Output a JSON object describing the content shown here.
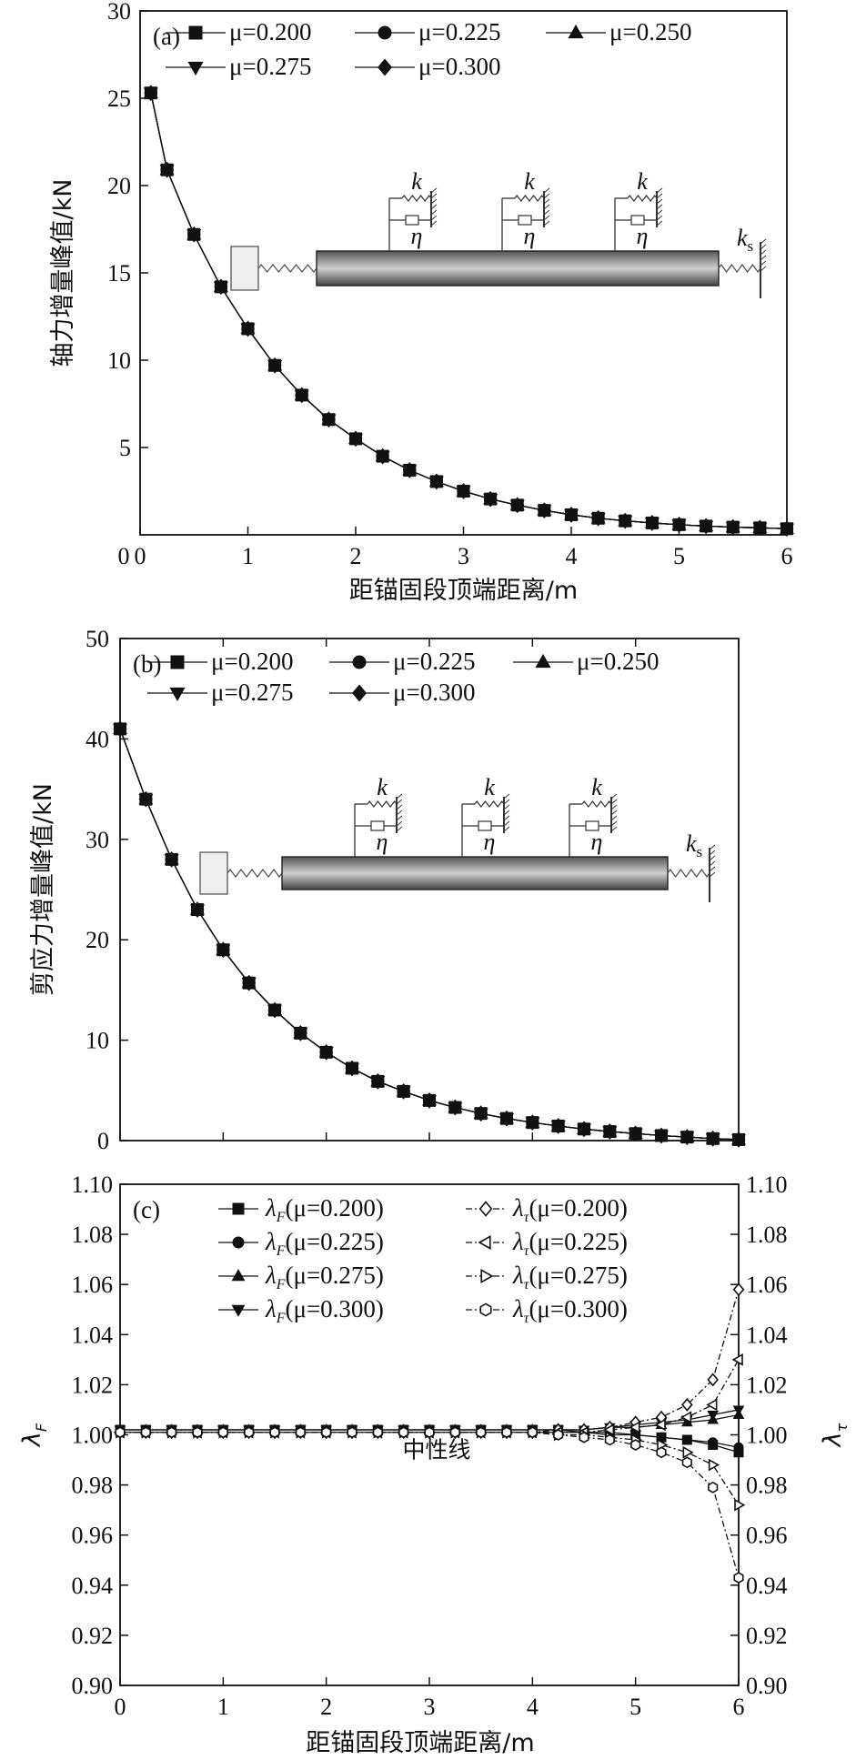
{
  "chart_data": [
    {
      "panel": "(a)",
      "type": "line",
      "xlabel": "距锚固段顶端距离/m",
      "ylabel": "轴力增量峰值/kN",
      "xlim": [
        0,
        6
      ],
      "ylim": [
        0,
        30
      ],
      "xticks": [
        "0",
        "1",
        "2",
        "3",
        "4",
        "5",
        "6"
      ],
      "yticks": [
        "5",
        "10",
        "15",
        "20",
        "25",
        "30"
      ],
      "y_zero_label": "0",
      "legend_placement": "top",
      "x": [
        0.1,
        0.25,
        0.5,
        0.75,
        1.0,
        1.25,
        1.5,
        1.75,
        2.0,
        2.25,
        2.5,
        2.75,
        3.0,
        3.25,
        3.5,
        3.75,
        4.0,
        4.25,
        4.5,
        4.75,
        5.0,
        5.25,
        5.5,
        5.75,
        6.0
      ],
      "series": [
        {
          "name": "μ=0.200",
          "marker": "square",
          "values": [
            25.3,
            20.9,
            17.2,
            14.2,
            11.8,
            9.7,
            8.0,
            6.6,
            5.5,
            4.5,
            3.7,
            3.05,
            2.5,
            2.05,
            1.7,
            1.4,
            1.15,
            0.95,
            0.8,
            0.68,
            0.58,
            0.5,
            0.44,
            0.4,
            0.35
          ]
        },
        {
          "name": "μ=0.225",
          "marker": "circle",
          "values": [
            25.3,
            20.9,
            17.2,
            14.2,
            11.8,
            9.7,
            8.0,
            6.6,
            5.5,
            4.5,
            3.7,
            3.05,
            2.5,
            2.05,
            1.7,
            1.4,
            1.15,
            0.95,
            0.8,
            0.68,
            0.58,
            0.5,
            0.44,
            0.4,
            0.35
          ]
        },
        {
          "name": "μ=0.250",
          "marker": "triangle-up",
          "values": [
            25.3,
            20.9,
            17.2,
            14.2,
            11.8,
            9.7,
            8.0,
            6.6,
            5.5,
            4.5,
            3.7,
            3.05,
            2.5,
            2.05,
            1.7,
            1.4,
            1.15,
            0.95,
            0.8,
            0.68,
            0.58,
            0.5,
            0.44,
            0.4,
            0.35
          ]
        },
        {
          "name": "μ=0.275",
          "marker": "triangle-down",
          "values": [
            25.3,
            20.9,
            17.2,
            14.2,
            11.8,
            9.7,
            8.0,
            6.6,
            5.5,
            4.5,
            3.7,
            3.05,
            2.5,
            2.05,
            1.7,
            1.4,
            1.15,
            0.95,
            0.8,
            0.68,
            0.58,
            0.5,
            0.44,
            0.4,
            0.35
          ]
        },
        {
          "name": "μ=0.300",
          "marker": "diamond",
          "values": [
            25.3,
            20.9,
            17.2,
            14.2,
            11.8,
            9.7,
            8.0,
            6.6,
            5.5,
            4.5,
            3.7,
            3.05,
            2.5,
            2.05,
            1.7,
            1.4,
            1.15,
            0.95,
            0.8,
            0.68,
            0.58,
            0.5,
            0.44,
            0.4,
            0.35
          ]
        }
      ],
      "inset_labels": {
        "k": "k",
        "eta": "η",
        "ks": "k",
        "ks_sub": "s"
      }
    },
    {
      "panel": "(b)",
      "type": "line",
      "xlabel": "",
      "ylabel": "剪应力增量峰值/kN",
      "xlim": [
        0,
        6
      ],
      "ylim": [
        0,
        50
      ],
      "xticks": [],
      "yticks": [
        "0",
        "10",
        "20",
        "30",
        "40",
        "50"
      ],
      "legend_placement": "top",
      "x": [
        0.0,
        0.25,
        0.5,
        0.75,
        1.0,
        1.25,
        1.5,
        1.75,
        2.0,
        2.25,
        2.5,
        2.75,
        3.0,
        3.25,
        3.5,
        3.75,
        4.0,
        4.25,
        4.5,
        4.75,
        5.0,
        5.25,
        5.5,
        5.75,
        6.0
      ],
      "series": [
        {
          "name": "μ=0.200",
          "marker": "square",
          "values": [
            41.0,
            34.0,
            28.0,
            23.0,
            19.0,
            15.7,
            13.0,
            10.7,
            8.8,
            7.2,
            5.9,
            4.9,
            4.0,
            3.3,
            2.7,
            2.2,
            1.8,
            1.45,
            1.15,
            0.9,
            0.7,
            0.5,
            0.35,
            0.2,
            0.1
          ]
        },
        {
          "name": "μ=0.225",
          "marker": "circle",
          "values": [
            41.0,
            34.0,
            28.0,
            23.0,
            19.0,
            15.7,
            13.0,
            10.7,
            8.8,
            7.2,
            5.9,
            4.9,
            4.0,
            3.3,
            2.7,
            2.2,
            1.8,
            1.45,
            1.15,
            0.9,
            0.7,
            0.5,
            0.35,
            0.2,
            0.1
          ]
        },
        {
          "name": "μ=0.250",
          "marker": "triangle-up",
          "values": [
            41.0,
            34.0,
            28.0,
            23.0,
            19.0,
            15.7,
            13.0,
            10.7,
            8.8,
            7.2,
            5.9,
            4.9,
            4.0,
            3.3,
            2.7,
            2.2,
            1.8,
            1.45,
            1.15,
            0.9,
            0.7,
            0.5,
            0.35,
            0.2,
            0.1
          ]
        },
        {
          "name": "μ=0.275",
          "marker": "triangle-down",
          "values": [
            41.0,
            34.0,
            28.0,
            23.0,
            19.0,
            15.7,
            13.0,
            10.7,
            8.8,
            7.2,
            5.9,
            4.9,
            4.0,
            3.3,
            2.7,
            2.2,
            1.8,
            1.45,
            1.15,
            0.9,
            0.7,
            0.5,
            0.35,
            0.2,
            0.1
          ]
        },
        {
          "name": "μ=0.300",
          "marker": "diamond",
          "values": [
            41.0,
            34.0,
            28.0,
            23.0,
            19.0,
            15.7,
            13.0,
            10.7,
            8.8,
            7.2,
            5.9,
            4.9,
            4.0,
            3.3,
            2.7,
            2.2,
            1.8,
            1.45,
            1.15,
            0.9,
            0.7,
            0.5,
            0.35,
            0.2,
            0.1
          ]
        }
      ],
      "inset_labels": {
        "k": "k",
        "eta": "η",
        "ks": "k",
        "ks_sub": "s"
      }
    },
    {
      "panel": "(c)",
      "type": "line",
      "xlabel": "距锚固段顶端距离/m",
      "ylabel_left": "λ",
      "ylabel_left_sub": "F",
      "ylabel_right": "λ",
      "ylabel_right_sub": "τ",
      "xlim": [
        0,
        6
      ],
      "ylim": [
        0.9,
        1.1
      ],
      "xticks": [
        "0",
        "1",
        "2",
        "3",
        "4",
        "5",
        "6"
      ],
      "yticks": [
        "0.90",
        "0.92",
        "0.94",
        "0.96",
        "0.98",
        "1.00",
        "1.02",
        "1.04",
        "1.06",
        "1.08",
        "1.10"
      ],
      "legend_placement": "top",
      "annotation": "中性线",
      "x": [
        0.0,
        0.25,
        0.5,
        0.75,
        1.0,
        1.25,
        1.5,
        1.75,
        2.0,
        2.25,
        2.5,
        2.75,
        3.0,
        3.25,
        3.5,
        3.75,
        4.0,
        4.25,
        4.5,
        4.75,
        5.0,
        5.25,
        5.5,
        5.75,
        6.0
      ],
      "series": [
        {
          "symbol": "λ",
          "sub": "F",
          "mu": "(μ=0.200)",
          "marker": "square",
          "fill": "solid",
          "dash": "solid",
          "values": [
            1.002,
            1.002,
            1.002,
            1.002,
            1.002,
            1.002,
            1.002,
            1.002,
            1.002,
            1.002,
            1.002,
            1.002,
            1.002,
            1.002,
            1.002,
            1.002,
            1.002,
            1.002,
            1.001,
            1.001,
            1.0,
            0.999,
            0.998,
            0.996,
            0.993
          ]
        },
        {
          "symbol": "λ",
          "sub": "F",
          "mu": "(μ=0.225)",
          "marker": "circle",
          "fill": "solid",
          "dash": "solid",
          "values": [
            1.001,
            1.001,
            1.001,
            1.001,
            1.001,
            1.001,
            1.001,
            1.001,
            1.001,
            1.001,
            1.001,
            1.001,
            1.001,
            1.001,
            1.001,
            1.001,
            1.001,
            1.001,
            1.001,
            1.0,
            1.0,
            0.999,
            0.998,
            0.997,
            0.995
          ]
        },
        {
          "symbol": "λ",
          "sub": "F",
          "mu": "(μ=0.275)",
          "marker": "triangle-up",
          "fill": "solid",
          "dash": "solid",
          "values": [
            1.002,
            1.002,
            1.002,
            1.002,
            1.002,
            1.002,
            1.002,
            1.002,
            1.002,
            1.002,
            1.002,
            1.002,
            1.002,
            1.002,
            1.002,
            1.002,
            1.002,
            1.002,
            1.002,
            1.003,
            1.003,
            1.004,
            1.005,
            1.006,
            1.008
          ]
        },
        {
          "symbol": "λ",
          "sub": "F",
          "mu": "(μ=0.300)",
          "marker": "triangle-down",
          "fill": "solid",
          "dash": "solid",
          "values": [
            1.002,
            1.002,
            1.002,
            1.002,
            1.002,
            1.002,
            1.002,
            1.002,
            1.002,
            1.002,
            1.002,
            1.002,
            1.002,
            1.002,
            1.002,
            1.002,
            1.002,
            1.002,
            1.002,
            1.003,
            1.004,
            1.005,
            1.006,
            1.008,
            1.01
          ]
        },
        {
          "symbol": "λ",
          "sub": "τ",
          "mu": "(μ=0.200)",
          "marker": "diamond",
          "fill": "hollow",
          "dash": "dashdot",
          "values": [
            1.001,
            1.001,
            1.001,
            1.001,
            1.001,
            1.001,
            1.001,
            1.001,
            1.001,
            1.001,
            1.001,
            1.001,
            1.001,
            1.001,
            1.001,
            1.001,
            1.001,
            1.002,
            1.002,
            1.003,
            1.005,
            1.007,
            1.012,
            1.022,
            1.058
          ]
        },
        {
          "symbol": "λ",
          "sub": "τ",
          "mu": "(μ=0.225)",
          "marker": "triangle-left",
          "fill": "hollow",
          "dash": "dashdot",
          "values": [
            1.001,
            1.001,
            1.001,
            1.001,
            1.001,
            1.001,
            1.001,
            1.001,
            1.001,
            1.001,
            1.001,
            1.001,
            1.001,
            1.001,
            1.001,
            1.001,
            1.001,
            1.001,
            1.001,
            1.002,
            1.003,
            1.004,
            1.007,
            1.012,
            1.03
          ]
        },
        {
          "symbol": "λ",
          "sub": "τ",
          "mu": "(μ=0.275)",
          "marker": "triangle-right",
          "fill": "hollow",
          "dash": "dashdot",
          "values": [
            1.001,
            1.001,
            1.001,
            1.001,
            1.001,
            1.001,
            1.001,
            1.001,
            1.001,
            1.001,
            1.001,
            1.001,
            1.001,
            1.001,
            1.001,
            1.001,
            1.001,
            1.0,
            1.0,
            0.999,
            0.998,
            0.996,
            0.993,
            0.988,
            0.972
          ]
        },
        {
          "symbol": "λ",
          "sub": "τ",
          "mu": "(μ=0.300)",
          "marker": "hexagon",
          "fill": "hollow",
          "dash": "dashdot",
          "values": [
            1.001,
            1.001,
            1.001,
            1.001,
            1.001,
            1.001,
            1.001,
            1.001,
            1.001,
            1.001,
            1.001,
            1.001,
            1.001,
            1.001,
            1.001,
            1.001,
            1.001,
            1.0,
            0.999,
            0.998,
            0.996,
            0.993,
            0.989,
            0.979,
            0.943
          ]
        }
      ]
    }
  ]
}
